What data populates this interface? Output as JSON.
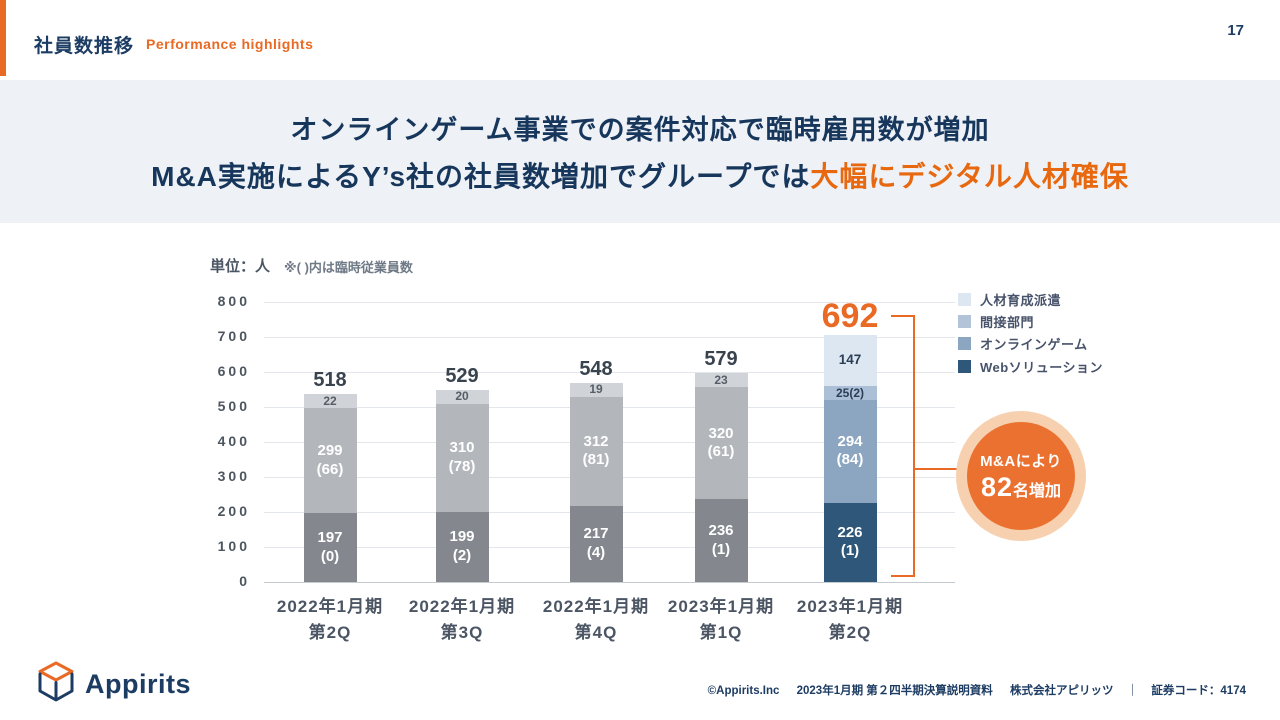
{
  "page_number": "17",
  "header": {
    "title_jp": "社員数推移",
    "title_en": "Performance highlights"
  },
  "banner": {
    "line1": "オンラインゲーム事業での案件対応で臨時雇用数が増加",
    "line2_normal": "M&A実施によるY’s社の社員数増加でグループでは",
    "line2_highlight": "大幅にデジタル人材確保"
  },
  "chart_data": {
    "type": "bar",
    "stacked": true,
    "unit_label": "単位：人",
    "note": "※( )内は臨時従業員数",
    "ylim": [
      0,
      800
    ],
    "ytick_step": 100,
    "grid": true,
    "legend_position": "right",
    "legend": [
      {
        "label": "人材育成派遣",
        "color": "#dce7f2"
      },
      {
        "label": "間接部門",
        "color": "#b4c4d8"
      },
      {
        "label": "オンラインゲーム",
        "color": "#8ca6c1"
      },
      {
        "label": "Webソリューション",
        "color": "#2e577a"
      }
    ],
    "bars": [
      {
        "category_line1": "2022年1月期",
        "category_line2": "第2Q",
        "total": 518,
        "highlight": false,
        "segments": [
          {
            "series": "Webソリューション",
            "value": 197,
            "label": "197\n(0)",
            "color": "#84888e",
            "text_color": "#ffffff"
          },
          {
            "series": "オンラインゲーム",
            "value": 299,
            "label": "299\n(66)",
            "color": "#b3b7bc",
            "text_color": "#ffffff"
          },
          {
            "series": "間接部門",
            "value": 22,
            "label": "22",
            "color": "#d0d4d8",
            "text_color": "#555e67"
          }
        ]
      },
      {
        "category_line1": "2022年1月期",
        "category_line2": "第3Q",
        "total": 529,
        "highlight": false,
        "segments": [
          {
            "series": "Webソリューション",
            "value": 199,
            "label": "199\n(2)",
            "color": "#84888e",
            "text_color": "#ffffff"
          },
          {
            "series": "オンラインゲーム",
            "value": 310,
            "label": "310\n(78)",
            "color": "#b3b7bc",
            "text_color": "#ffffff"
          },
          {
            "series": "間接部門",
            "value": 20,
            "label": "20",
            "color": "#d0d4d8",
            "text_color": "#555e67"
          }
        ]
      },
      {
        "category_line1": "2022年1月期",
        "category_line2": "第4Q",
        "total": 548,
        "highlight": false,
        "segments": [
          {
            "series": "Webソリューション",
            "value": 217,
            "label": "217\n(4)",
            "color": "#84888e",
            "text_color": "#ffffff"
          },
          {
            "series": "オンラインゲーム",
            "value": 312,
            "label": "312\n(81)",
            "color": "#b3b7bc",
            "text_color": "#ffffff"
          },
          {
            "series": "間接部門",
            "value": 19,
            "label": "19",
            "color": "#d0d4d8",
            "text_color": "#555e67"
          }
        ]
      },
      {
        "category_line1": "2023年1月期",
        "category_line2": "第1Q",
        "total": 579,
        "highlight": false,
        "segments": [
          {
            "series": "Webソリューション",
            "value": 236,
            "label": "236\n(1)",
            "color": "#84888e",
            "text_color": "#ffffff"
          },
          {
            "series": "オンラインゲーム",
            "value": 320,
            "label": "320\n(61)",
            "color": "#b3b7bc",
            "text_color": "#ffffff"
          },
          {
            "series": "間接部門",
            "value": 23,
            "label": "23",
            "color": "#d0d4d8",
            "text_color": "#555e67"
          }
        ]
      },
      {
        "category_line1": "2023年1月期",
        "category_line2": "第2Q",
        "total": 692,
        "highlight": true,
        "segments": [
          {
            "series": "Webソリューション",
            "value": 226,
            "label": "226\n(1)",
            "color": "#2e577a",
            "text_color": "#ffffff"
          },
          {
            "series": "オンラインゲーム",
            "value": 294,
            "label": "294\n(84)",
            "color": "#8ca6c1",
            "text_color": "#ffffff"
          },
          {
            "series": "間接部門",
            "value": 25,
            "label": "25(2)",
            "color": "#abbfd7",
            "text_color": "#2c3e55"
          },
          {
            "series": "人材育成派遣",
            "value": 147,
            "label": "147",
            "color": "#dce7f2",
            "text_color": "#2c3e55"
          }
        ]
      }
    ],
    "highlight_callout": {
      "line1": "M&Aにより",
      "big": "82",
      "rest": "名増加",
      "circle_color": "#ea7130",
      "halo_color": "#f7d0b0",
      "bracket_color": "#e96a24"
    }
  },
  "footer": {
    "logo_text": "Appirits",
    "copyright": "©Appirits.Inc",
    "doc_title": "2023年1月期 第２四半期決算説明資料",
    "company": "株式会社アピリッツ",
    "divider": "｜",
    "stock_code": "証券コード：4174"
  }
}
